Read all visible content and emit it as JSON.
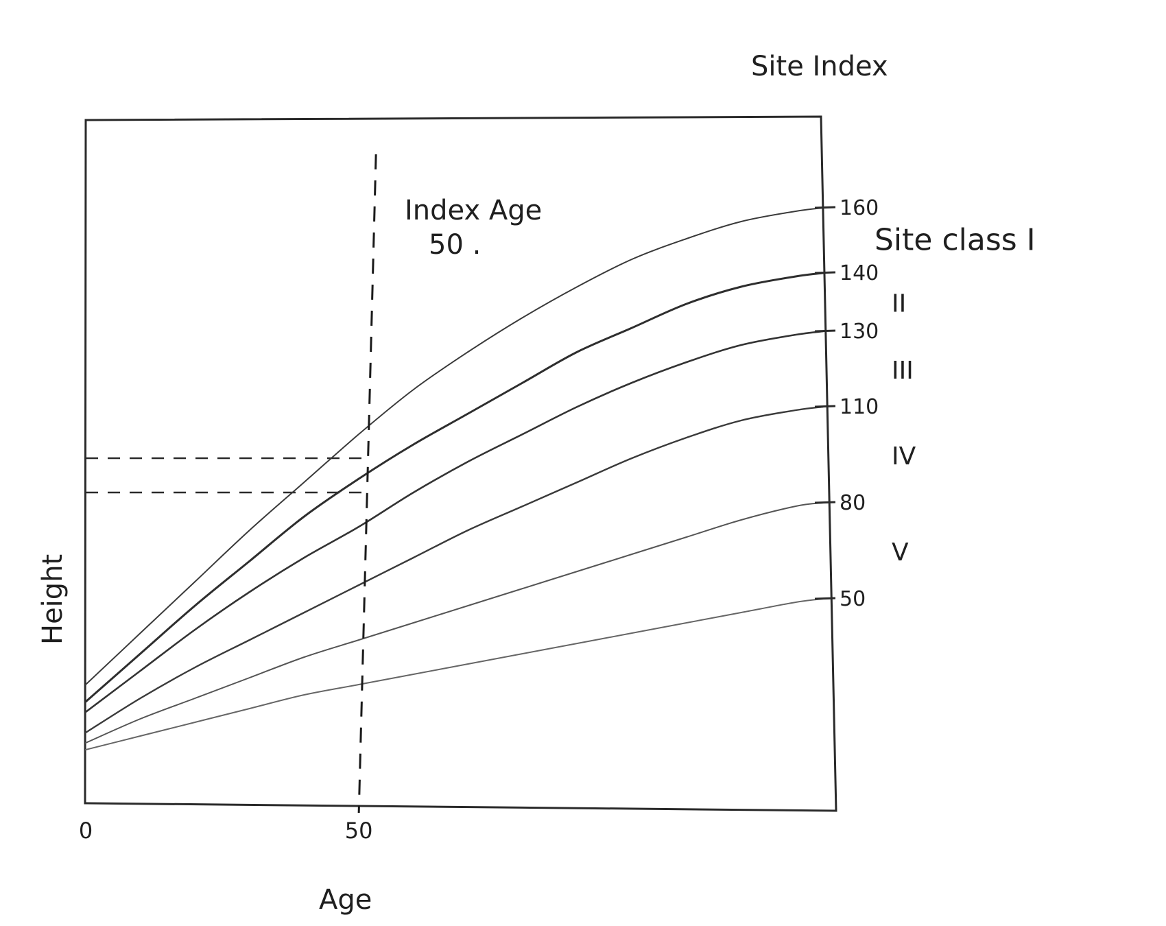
{
  "chart_data": {
    "type": "line",
    "title": "",
    "xlabel": "Age",
    "ylabel": "Height",
    "right_axis_label": "Site Index",
    "x_ticks": [
      {
        "value": 0,
        "label": "0"
      },
      {
        "value": 50,
        "label": "50"
      }
    ],
    "xlim": [
      0,
      135
    ],
    "ylim": [
      0,
      200
    ],
    "index_age": {
      "x": 50,
      "label_line1": "Index Age",
      "label_line2": "50 ."
    },
    "reference_heights": [
      100,
      90
    ],
    "x": [
      0,
      10,
      20,
      30,
      40,
      50,
      60,
      70,
      80,
      90,
      100,
      110,
      120,
      130,
      135
    ],
    "series": [
      {
        "site_index": "160",
        "values": [
          34,
          49,
          64,
          79,
          93,
          107,
          120,
          131,
          141,
          150,
          158,
          164,
          169,
          172,
          173
        ]
      },
      {
        "site_index": "140",
        "values": [
          29,
          43,
          57,
          70,
          83,
          94,
          104,
          113,
          122,
          131,
          138,
          145,
          150,
          153,
          154
        ]
      },
      {
        "site_index": "130",
        "values": [
          26,
          38,
          50,
          61,
          71,
          80,
          90,
          99,
          107,
          115,
          122,
          128,
          133,
          136,
          137
        ]
      },
      {
        "site_index": "110",
        "values": [
          20,
          30,
          39,
          47,
          55,
          63,
          71,
          79,
          86,
          93,
          100,
          106,
          111,
          114,
          115
        ]
      },
      {
        "site_index": "80",
        "values": [
          17,
          24,
          30,
          36,
          42,
          47,
          52,
          57,
          62,
          67,
          72,
          77,
          82,
          86,
          87
        ]
      },
      {
        "site_index": "50",
        "values": [
          15,
          19,
          23,
          27,
          31,
          34,
          37,
          40,
          43,
          46,
          49,
          52,
          55,
          58,
          59
        ]
      }
    ],
    "site_class_labels": [
      {
        "label": "Site class  I",
        "between": [
          "160",
          "140"
        ]
      },
      {
        "label": "II",
        "between": [
          "140",
          "130"
        ]
      },
      {
        "label": "III",
        "between": [
          "130",
          "110"
        ]
      },
      {
        "label": "IV",
        "between": [
          "110",
          "80"
        ]
      },
      {
        "label": "V",
        "between": [
          "80",
          "50"
        ]
      }
    ],
    "grid": false,
    "legend": "none"
  }
}
